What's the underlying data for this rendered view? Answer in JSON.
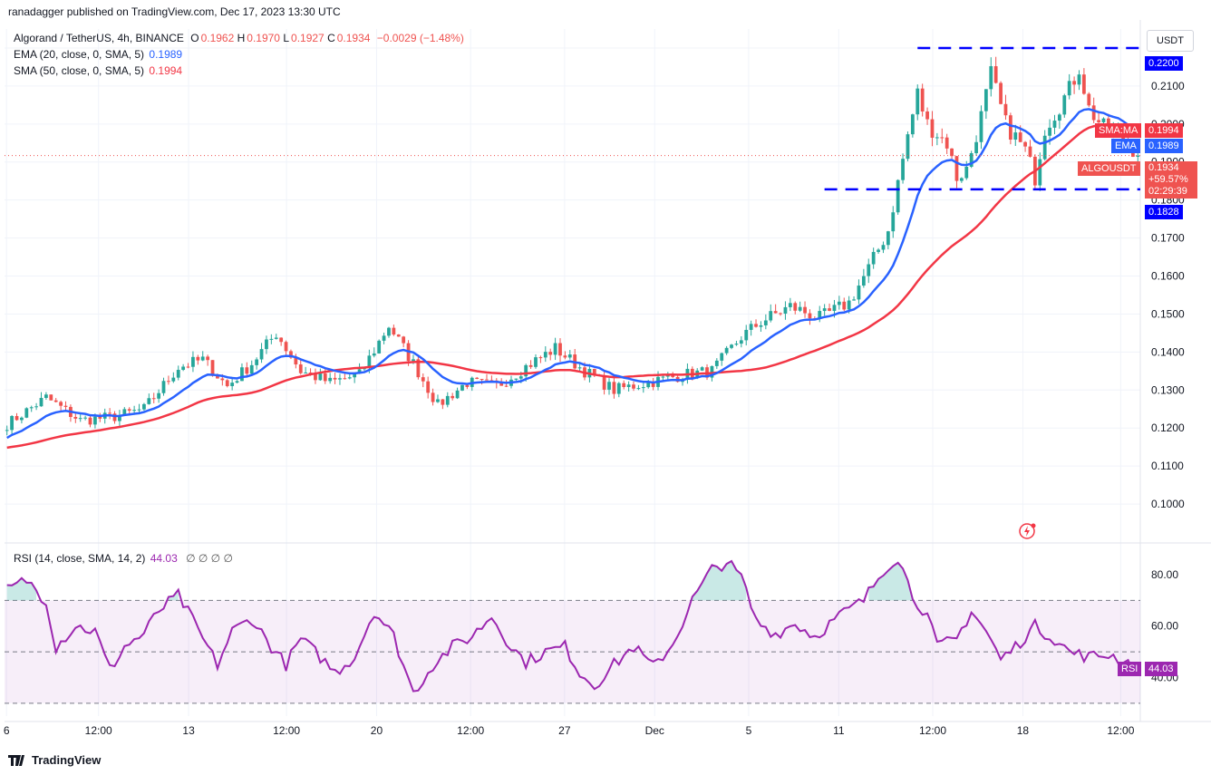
{
  "credit": "ranadagger published on TradingView.com, Dec 17, 2023 13:30 UTC",
  "currency_button": "USDT",
  "legend": {
    "symbol": "Algorand / TetherUS, 4h, BINANCE",
    "ohlc": {
      "o_label": "O",
      "o": "0.1962",
      "h_label": "H",
      "h": "0.1970",
      "l_label": "L",
      "l": "0.1927",
      "c_label": "C",
      "c": "0.1934",
      "change": "−0.0029 (−1.48%)"
    },
    "ema": {
      "label": "EMA (20, close, 0, SMA, 5)",
      "value": "0.1989"
    },
    "sma": {
      "label": "SMA (50, close, 0, SMA, 5)",
      "value": "0.1994"
    },
    "rsi": {
      "label": "RSI (14, close, SMA, 14, 2)",
      "value": "44.03",
      "extras": "∅ ∅ ∅ ∅"
    }
  },
  "price_tags": {
    "resistance": "0.2200",
    "support": "0.1828",
    "sma_label": "SMA:MA",
    "sma_value": "0.1994",
    "ema_label": "EMA",
    "ema_value": "0.1989",
    "symbol_label": "ALGOUSDT",
    "last_price": "0.1934",
    "last_change": "+59.57%",
    "countdown": "02:29:39",
    "rsi_label": "RSI",
    "rsi_value": "44.03"
  },
  "brand": "TradingView",
  "colors": {
    "up": "#26a69a",
    "down": "#ef5350",
    "ema": "#2962ff",
    "sma": "#f23645",
    "rsi": "#9c27b0",
    "level": "#0000ff"
  },
  "chart_data": {
    "type": "candlestick",
    "ylim": [
      0.09,
      0.225
    ],
    "y_ticks": [
      "0.1000",
      "0.1100",
      "0.1200",
      "0.1300",
      "0.1400",
      "0.1500",
      "0.1600",
      "0.1700",
      "0.1800",
      "0.1900",
      "0.2000",
      "0.2100",
      "0.2200"
    ],
    "x_ticks": [
      "6",
      "12:00",
      "13",
      "12:00",
      "20",
      "12:00",
      "27",
      "Dec",
      "5",
      "11",
      "12:00",
      "18",
      "12:00"
    ],
    "levels": [
      0.22,
      0.1828
    ],
    "anchors": [
      [
        0,
        0.121
      ],
      [
        8,
        0.128
      ],
      [
        15,
        0.122
      ],
      [
        22,
        0.123
      ],
      [
        28,
        0.125
      ],
      [
        35,
        0.136
      ],
      [
        40,
        0.138
      ],
      [
        45,
        0.131
      ],
      [
        50,
        0.137
      ],
      [
        55,
        0.145
      ],
      [
        60,
        0.135
      ],
      [
        66,
        0.132
      ],
      [
        72,
        0.134
      ],
      [
        78,
        0.147
      ],
      [
        83,
        0.137
      ],
      [
        88,
        0.126
      ],
      [
        94,
        0.132
      ],
      [
        100,
        0.131
      ],
      [
        107,
        0.137
      ],
      [
        112,
        0.141
      ],
      [
        118,
        0.135
      ],
      [
        124,
        0.13
      ],
      [
        131,
        0.132
      ],
      [
        138,
        0.134
      ],
      [
        144,
        0.135
      ],
      [
        150,
        0.144
      ],
      [
        154,
        0.148
      ],
      [
        160,
        0.152
      ],
      [
        166,
        0.149
      ],
      [
        172,
        0.153
      ],
      [
        176,
        0.162
      ],
      [
        180,
        0.172
      ],
      [
        184,
        0.197
      ],
      [
        186,
        0.208
      ],
      [
        188,
        0.2
      ],
      [
        192,
        0.195
      ],
      [
        194,
        0.186
      ],
      [
        196,
        0.188
      ],
      [
        199,
        0.202
      ],
      [
        201,
        0.213
      ],
      [
        204,
        0.2
      ],
      [
        208,
        0.193
      ],
      [
        210,
        0.186
      ],
      [
        212,
        0.199
      ],
      [
        214,
        0.203
      ],
      [
        217,
        0.209
      ],
      [
        219,
        0.215
      ],
      [
        221,
        0.204
      ],
      [
        224,
        0.199
      ],
      [
        227,
        0.198
      ],
      [
        229,
        0.194
      ],
      [
        231,
        0.193
      ]
    ],
    "rsi": {
      "ylim": [
        25,
        92
      ],
      "upper": 70,
      "lower": 30,
      "mid": 50,
      "y_ticks": [
        "40.00",
        "60.00",
        "80.00"
      ],
      "anchors": [
        [
          0,
          74
        ],
        [
          4,
          78
        ],
        [
          8,
          70
        ],
        [
          10,
          52
        ],
        [
          14,
          60
        ],
        [
          18,
          58
        ],
        [
          21,
          43
        ],
        [
          24,
          52
        ],
        [
          28,
          57
        ],
        [
          31,
          66
        ],
        [
          35,
          72
        ],
        [
          38,
          62
        ],
        [
          40,
          55
        ],
        [
          43,
          45
        ],
        [
          46,
          58
        ],
        [
          50,
          63
        ],
        [
          54,
          52
        ],
        [
          57,
          45
        ],
        [
          60,
          55
        ],
        [
          64,
          48
        ],
        [
          67,
          42
        ],
        [
          71,
          48
        ],
        [
          75,
          66
        ],
        [
          79,
          56
        ],
        [
          83,
          34
        ],
        [
          87,
          45
        ],
        [
          91,
          52
        ],
        [
          95,
          56
        ],
        [
          99,
          64
        ],
        [
          103,
          52
        ],
        [
          106,
          46
        ],
        [
          110,
          50
        ],
        [
          114,
          52
        ],
        [
          117,
          42
        ],
        [
          120,
          37
        ],
        [
          124,
          45
        ],
        [
          128,
          52
        ],
        [
          132,
          44
        ],
        [
          136,
          53
        ],
        [
          140,
          70
        ],
        [
          144,
          82
        ],
        [
          147,
          85
        ],
        [
          150,
          79
        ],
        [
          153,
          62
        ],
        [
          157,
          57
        ],
        [
          161,
          61
        ],
        [
          165,
          56
        ],
        [
          170,
          64
        ],
        [
          175,
          70
        ],
        [
          179,
          82
        ],
        [
          182,
          87
        ],
        [
          185,
          72
        ],
        [
          188,
          64
        ],
        [
          190,
          52
        ],
        [
          194,
          55
        ],
        [
          197,
          66
        ],
        [
          200,
          58
        ],
        [
          203,
          47
        ],
        [
          206,
          52
        ],
        [
          210,
          60
        ],
        [
          214,
          55
        ],
        [
          217,
          50
        ],
        [
          221,
          48
        ],
        [
          225,
          49
        ],
        [
          229,
          46
        ],
        [
          231,
          44
        ]
      ]
    }
  }
}
